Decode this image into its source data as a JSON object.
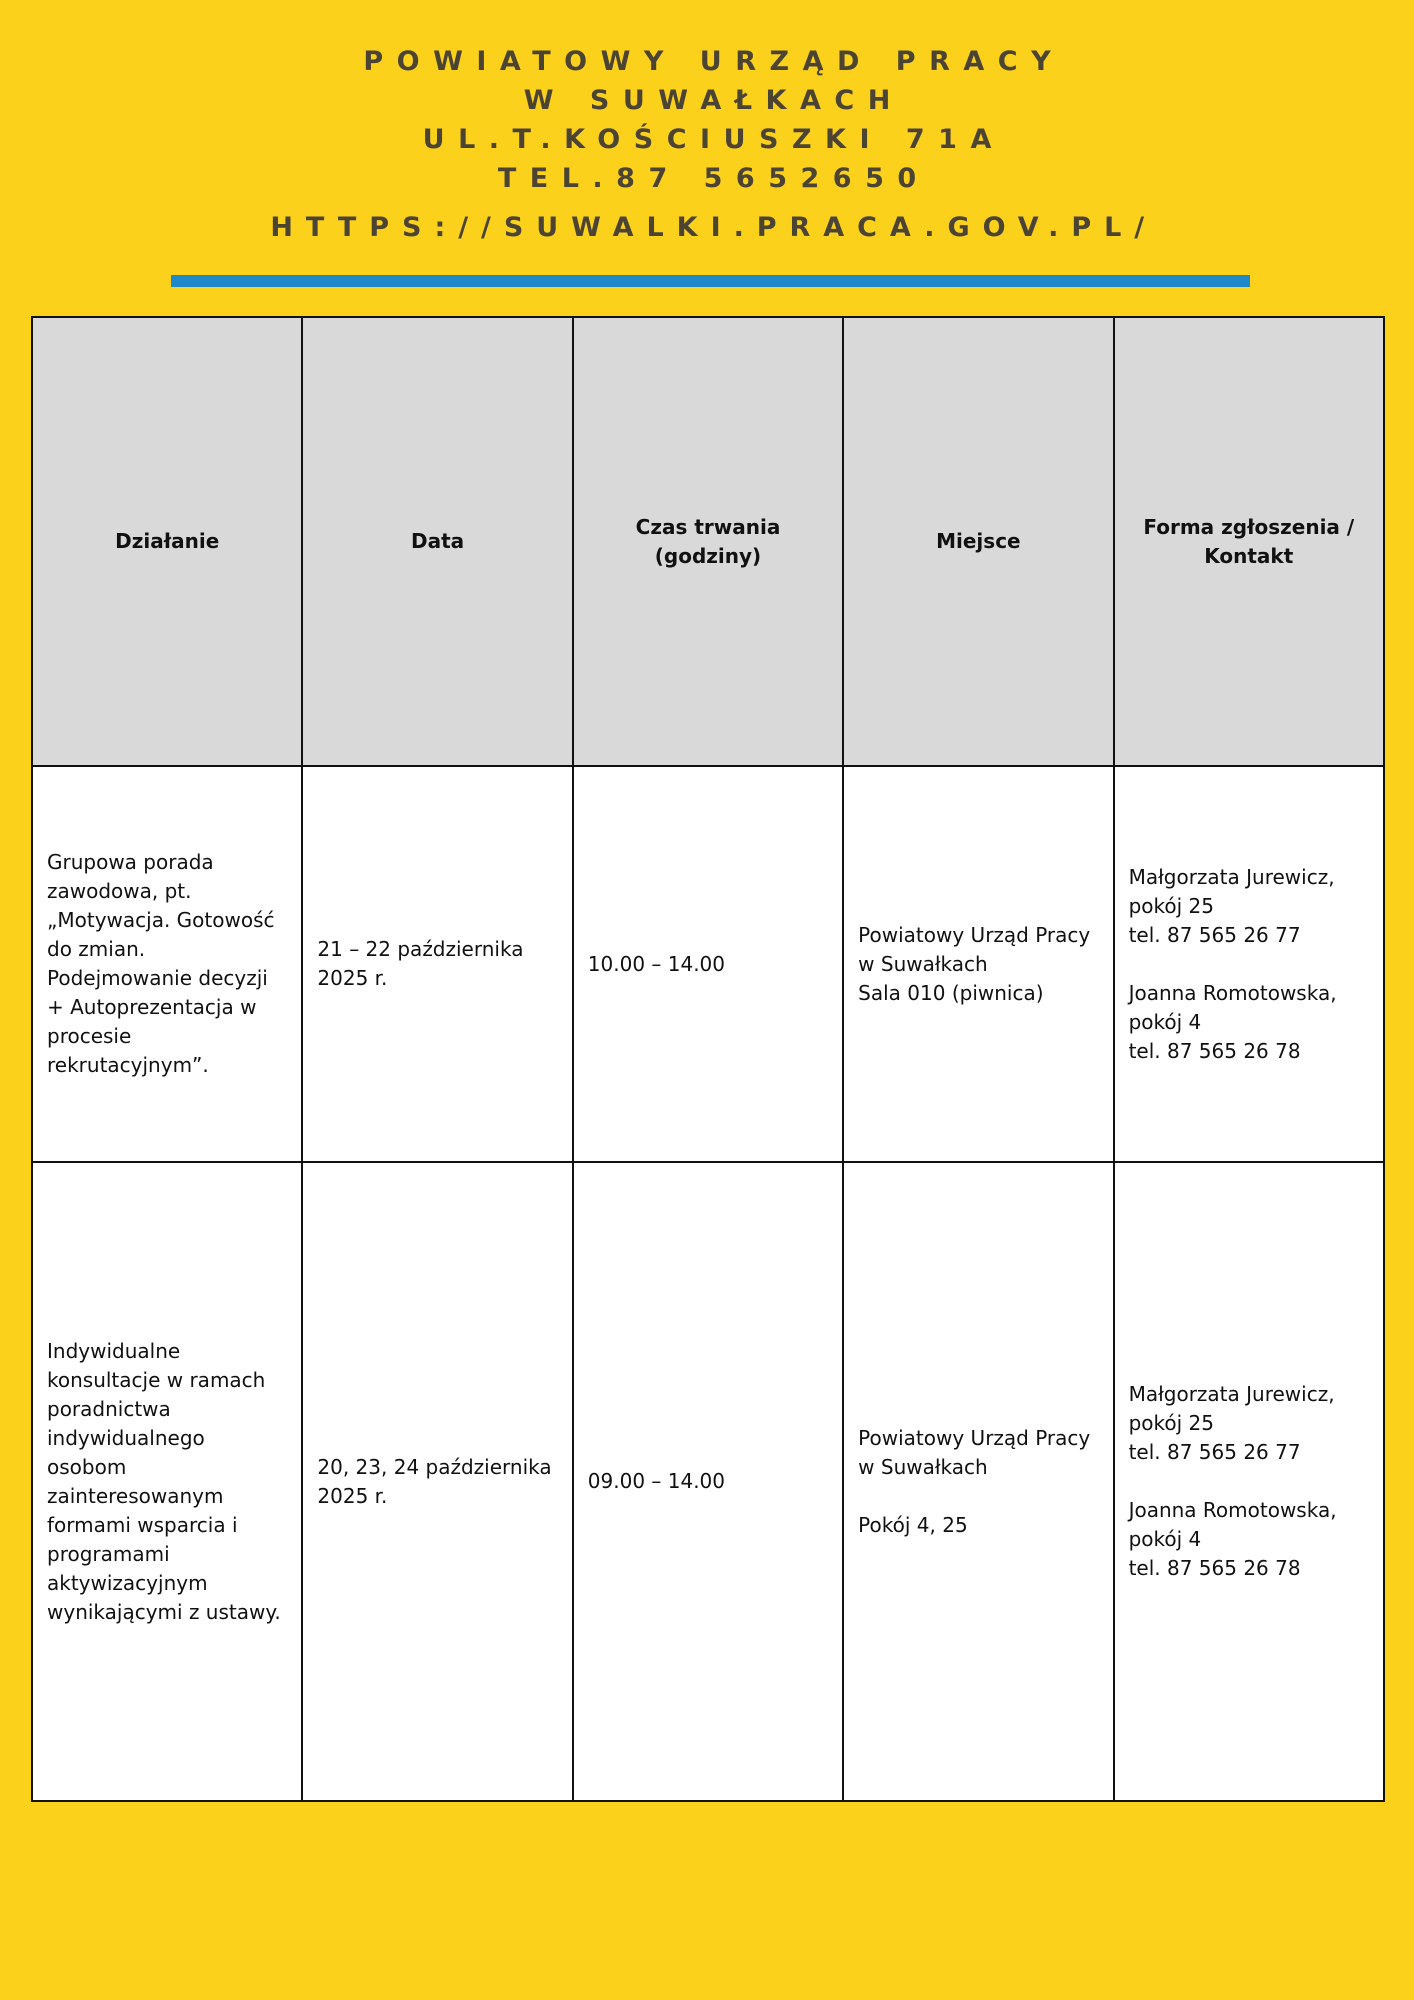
{
  "header": {
    "lines": [
      "POWIATOWY URZĄD PRACY",
      "W SUWAŁKACH",
      "UL.T.KOŚCIUSZKI 71A",
      "TEL.87 5652650"
    ],
    "url": "HTTPS://SUWALKI.PRACA.GOV.PL/"
  },
  "colors": {
    "background": "#fcd11c",
    "accent_bar": "#1e88c8",
    "header_cell": "#d9d9d9"
  },
  "table": {
    "columns": [
      "Działanie",
      "Data",
      "Czas trwania (godziny)",
      "Miejsce",
      "Forma zgłoszenia / Kontakt"
    ],
    "rows": [
      [
        "Grupowa porada zawodowa, pt. „Motywacja. Gotowość do zmian. Podejmowanie decyzji + Autoprezentacja w procesie rekrutacyjnym”.",
        "21 – 22 października 2025 r.",
        "10.00 – 14.00",
        "Powiatowy Urząd Pracy w Suwałkach\n Sala 010 (piwnica)",
        "Małgorzata Jurewicz, pokój 25\ntel. 87 565 26 77\n\nJoanna Romotowska, pokój 4\ntel. 87 565 26 78"
      ],
      [
        "Indywidualne konsultacje w ramach poradnictwa indywidualnego osobom zainteresowanym formami wsparcia i programami aktywizacyjnym wynikającymi z ustawy.",
        "20, 23, 24 października 2025 r.",
        "09.00 – 14.00",
        "Powiatowy Urząd Pracy w Suwałkach\n\nPokój 4, 25",
        "Małgorzata Jurewicz, pokój 25\ntel. 87 565 26 77\n\nJoanna Romotowska, pokój 4\ntel. 87 565 26 78"
      ]
    ]
  }
}
